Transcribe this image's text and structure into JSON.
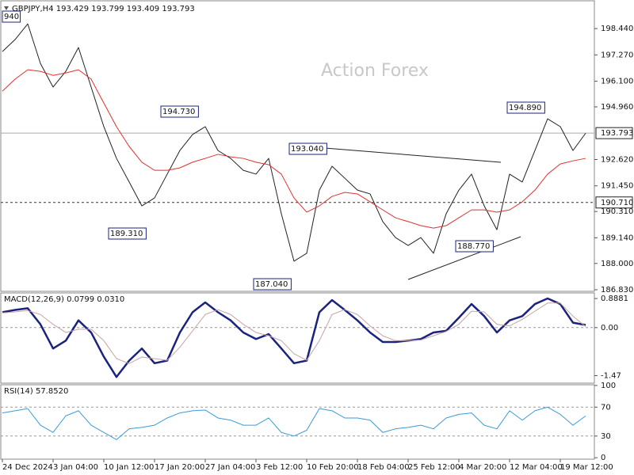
{
  "chart_data": [
    {
      "type": "line",
      "title": "GBPJPY,H4  193.429 193.799 193.409 193.793",
      "watermark": "Action Forex",
      "categories": [
        "24 Dec 2024",
        null,
        null,
        null,
        "3 Jan 04:00",
        null,
        null,
        null,
        "10 Jan 12:00",
        null,
        null,
        null,
        "17 Jan 20:00",
        null,
        null,
        null,
        "27 Jan 04:00",
        null,
        null,
        null,
        "3 Feb 12:00",
        null,
        null,
        null,
        "10 Feb 20:00",
        null,
        null,
        null,
        "18 Feb 04:00",
        null,
        null,
        null,
        "25 Feb 12:00",
        null,
        null,
        null,
        "4 Mar 20:00",
        null,
        null,
        null,
        "12 Mar 04:00",
        null,
        null,
        null,
        "19 Mar 12:00",
        null,
        null
      ],
      "series": [
        {
          "color": "#222222",
          "width": 1,
          "values": [
            197.42,
            197.95,
            198.65,
            196.89,
            195.84,
            196.54,
            197.6,
            195.84,
            194.08,
            192.67,
            191.62,
            190.56,
            190.91,
            191.97,
            193.02,
            193.73,
            194.08,
            193.02,
            192.67,
            192.14,
            191.97,
            192.67,
            190.21,
            188.1,
            188.45,
            191.26,
            192.32,
            191.79,
            191.26,
            191.09,
            189.86,
            189.15,
            188.8,
            189.15,
            188.45,
            190.21,
            191.26,
            191.97,
            190.56,
            189.5,
            191.97,
            191.62,
            193.02,
            194.43,
            194.08,
            193.02,
            193.79
          ]
        },
        {
          "color": "#e03030",
          "width": 1,
          "values": [
            195.66,
            196.19,
            196.61,
            196.54,
            196.36,
            196.47,
            196.61,
            196.19,
            195.13,
            194.08,
            193.2,
            192.5,
            192.14,
            192.14,
            192.25,
            192.5,
            192.67,
            192.85,
            192.74,
            192.67,
            192.5,
            192.39,
            191.97,
            190.91,
            190.28,
            190.56,
            190.98,
            191.16,
            191.09,
            190.74,
            190.38,
            190.03,
            189.86,
            189.68,
            189.57,
            189.68,
            190.03,
            190.38,
            190.38,
            190.28,
            190.38,
            190.74,
            191.26,
            191.97,
            192.42,
            192.56,
            192.67
          ]
        }
      ],
      "ylim": [
        186.76,
        199.64
      ],
      "yticks": [
        {
          "value": 198.44,
          "label": "198.440"
        },
        {
          "value": 197.27,
          "label": "197.270"
        },
        {
          "value": 196.1,
          "label": "196.100"
        },
        {
          "value": 194.96,
          "label": "194.960"
        },
        {
          "value": 192.62,
          "label": "192.620"
        },
        {
          "value": 191.45,
          "label": "191.450"
        },
        {
          "value": 190.31,
          "label": "190.310"
        },
        {
          "value": 189.14,
          "label": "189.140"
        },
        {
          "value": 188,
          "label": "188.000"
        },
        {
          "value": 186.83,
          "label": "186.830"
        }
      ],
      "last_price": 193.793,
      "level": {
        "value": 190.71,
        "label": "190.710"
      },
      "annotations": [
        "940",
        "194.730",
        "193.040",
        "189.310",
        "187.040",
        "188.770",
        "194.890"
      ]
    },
    {
      "type": "line",
      "title": "MACD(12,26,9) 0.0799 0.0310",
      "series": [
        {
          "color": "#1a237e",
          "width": 2.5,
          "values": [
            0.47,
            0.54,
            0.59,
            0.1,
            -0.64,
            -0.4,
            0.22,
            -0.15,
            -0.89,
            -1.51,
            -1.01,
            -0.64,
            -1.09,
            -1.01,
            -0.15,
            0.47,
            0.77,
            0.47,
            0.22,
            -0.15,
            -0.35,
            -0.2,
            -0.64,
            -1.09,
            -1.01,
            0.47,
            0.84,
            0.54,
            0.22,
            -0.15,
            -0.44,
            -0.44,
            -0.4,
            -0.35,
            -0.15,
            -0.1,
            0.3,
            0.72,
            0.35,
            -0.15,
            0.22,
            0.35,
            0.72,
            0.89,
            0.72,
            0.15,
            0.08
          ]
        },
        {
          "color": "#c9a3a3",
          "width": 1,
          "values": [
            0.45,
            0.48,
            0.52,
            0.4,
            0.1,
            -0.15,
            -0.05,
            -0.05,
            -0.4,
            -0.95,
            -1.1,
            -0.9,
            -0.95,
            -1.0,
            -0.6,
            -0.1,
            0.4,
            0.55,
            0.4,
            0.1,
            -0.15,
            -0.25,
            -0.4,
            -0.8,
            -1.0,
            -0.4,
            0.4,
            0.55,
            0.4,
            0.05,
            -0.25,
            -0.4,
            -0.4,
            -0.38,
            -0.25,
            -0.12,
            0.1,
            0.5,
            0.48,
            0.1,
            0.05,
            0.25,
            0.5,
            0.75,
            0.75,
            0.35,
            0.03
          ]
        }
      ],
      "ylim": [
        -1.7,
        1.06
      ],
      "yticks": [
        0.8881,
        {
          "value": 0,
          "label": "0.00"
        },
        -1.47
      ],
      "levels": [
        0
      ]
    },
    {
      "type": "line",
      "title": "RSI(14) 57.8520",
      "series": [
        {
          "color": "#3a9ad9",
          "width": 1,
          "values": [
            62,
            65,
            68,
            45,
            35,
            58,
            65,
            45,
            35,
            25,
            40,
            42,
            45,
            55,
            62,
            65,
            66,
            55,
            52,
            45,
            45,
            55,
            35,
            30,
            38,
            68,
            65,
            55,
            55,
            52,
            35,
            40,
            42,
            45,
            40,
            55,
            60,
            62,
            45,
            40,
            65,
            52,
            65,
            70,
            60,
            45,
            57.852
          ]
        }
      ],
      "ylim": [
        -2,
        101
      ],
      "yticks": [
        100,
        70,
        30,
        0
      ],
      "levels": [
        70,
        30
      ]
    }
  ]
}
